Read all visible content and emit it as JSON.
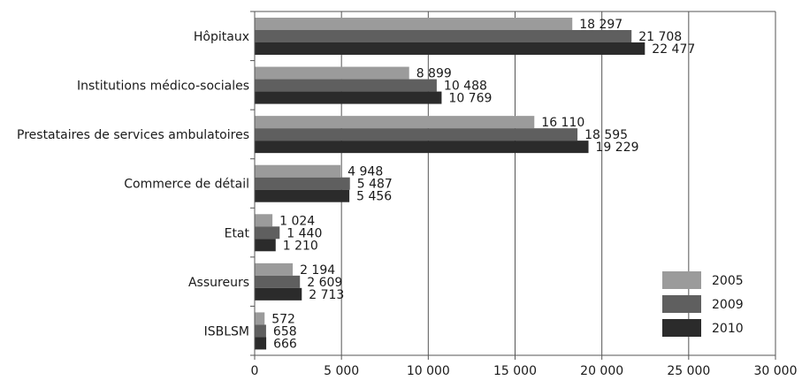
{
  "chart_data": {
    "type": "bar",
    "orientation": "horizontal",
    "title": "",
    "xlabel": "",
    "ylabel": "",
    "xlim": [
      0,
      30000
    ],
    "xticks": [
      0,
      5000,
      10000,
      15000,
      20000,
      25000,
      30000
    ],
    "xtick_labels": [
      "0",
      "5 000",
      "10 000",
      "15 000",
      "20 000",
      "25 000",
      "30 000"
    ],
    "grid": "vertical",
    "legend_position": "bottom-right",
    "categories": [
      "Hôpitaux",
      "Institutions médico-sociales",
      "Prestataires de services ambulatoires",
      "Commerce de détail",
      "Etat",
      "Assureurs",
      "ISBLSM"
    ],
    "series": [
      {
        "name": "2005",
        "color": "#9b9b9b",
        "values": [
          18297,
          8899,
          16110,
          4948,
          1024,
          2194,
          572
        ],
        "labels": [
          "18 297",
          "8 899",
          "16 110",
          "4 948",
          "1 024",
          "2 194",
          "572"
        ]
      },
      {
        "name": "2009",
        "color": "#5f5f5f",
        "values": [
          21708,
          10488,
          18595,
          5487,
          1440,
          2609,
          658
        ],
        "labels": [
          "21 708",
          "10 488",
          "18 595",
          "5 487",
          "1 440",
          "2 609",
          "658"
        ]
      },
      {
        "name": "2010",
        "color": "#2b2b2b",
        "values": [
          22477,
          10769,
          19229,
          5456,
          1210,
          2713,
          666
        ],
        "labels": [
          "22 477",
          "10 769",
          "19 229",
          "5 456",
          "1 210",
          "2 713",
          "666"
        ]
      }
    ]
  }
}
